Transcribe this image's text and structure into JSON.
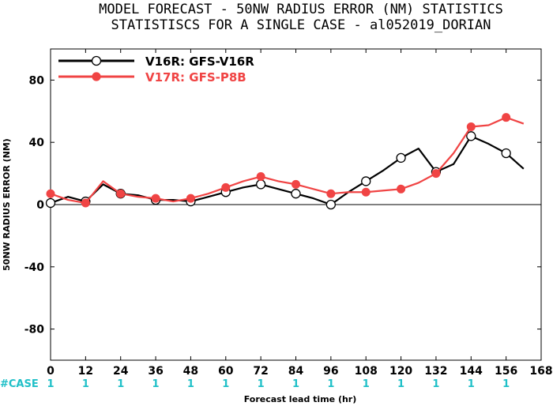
{
  "chart_data": {
    "type": "line",
    "title_line1": "MODEL FORECAST - 50NW RADIUS ERROR (NM) STATISTICS",
    "title_line2": "STATISTISCS FOR A SINGLE CASE - al052019_DORIAN",
    "xlabel": "Forecast lead time (hr)",
    "ylabel": "50NW RADIUS ERROR (NM)",
    "xlim": [
      0,
      168
    ],
    "ylim": [
      -100,
      100
    ],
    "x_ticks": [
      0,
      12,
      24,
      36,
      48,
      60,
      72,
      84,
      96,
      108,
      120,
      132,
      144,
      156,
      168
    ],
    "y_ticks": [
      -80,
      -40,
      0,
      40,
      80
    ],
    "grid": false,
    "legend_position": "top-left",
    "series": [
      {
        "name": "V16R: GFS-V16R",
        "color": "#000000",
        "marker": "open-circle",
        "x": [
          0,
          6,
          12,
          18,
          24,
          30,
          36,
          42,
          48,
          54,
          60,
          66,
          72,
          78,
          84,
          90,
          96,
          102,
          108,
          114,
          120,
          126,
          132,
          138,
          144,
          150,
          156,
          162
        ],
        "y": [
          1,
          5,
          2,
          13,
          7,
          6,
          3,
          3,
          2,
          5,
          8,
          11,
          13,
          10,
          7,
          4,
          0,
          8,
          15,
          22,
          30,
          36,
          21,
          26,
          44,
          39,
          33,
          23
        ],
        "marker_x": [
          0,
          12,
          24,
          36,
          48,
          60,
          72,
          84,
          96,
          108,
          120,
          132,
          144,
          156
        ]
      },
      {
        "name": "V17R: GFS-P8B",
        "color": "#f04444",
        "marker": "filled-circle",
        "x": [
          0,
          6,
          12,
          18,
          24,
          30,
          36,
          42,
          48,
          54,
          60,
          66,
          72,
          78,
          84,
          90,
          96,
          102,
          108,
          114,
          120,
          126,
          132,
          138,
          144,
          150,
          156,
          162
        ],
        "y": [
          7,
          3,
          1,
          15,
          7,
          5,
          4,
          2,
          4,
          7,
          11,
          15,
          18,
          15,
          13,
          10,
          7,
          8,
          8,
          9,
          10,
          14,
          20,
          33,
          50,
          51,
          56,
          52
        ],
        "marker_x": [
          0,
          12,
          24,
          36,
          48,
          60,
          72,
          84,
          96,
          108,
          120,
          132,
          144,
          156
        ]
      }
    ],
    "case_label": "#CASE",
    "case_counts": [
      "1",
      "1",
      "1",
      "1",
      "1",
      "1",
      "1",
      "1",
      "1",
      "1",
      "1",
      "1",
      "1",
      "1"
    ],
    "case_color": "#20c0c8"
  }
}
